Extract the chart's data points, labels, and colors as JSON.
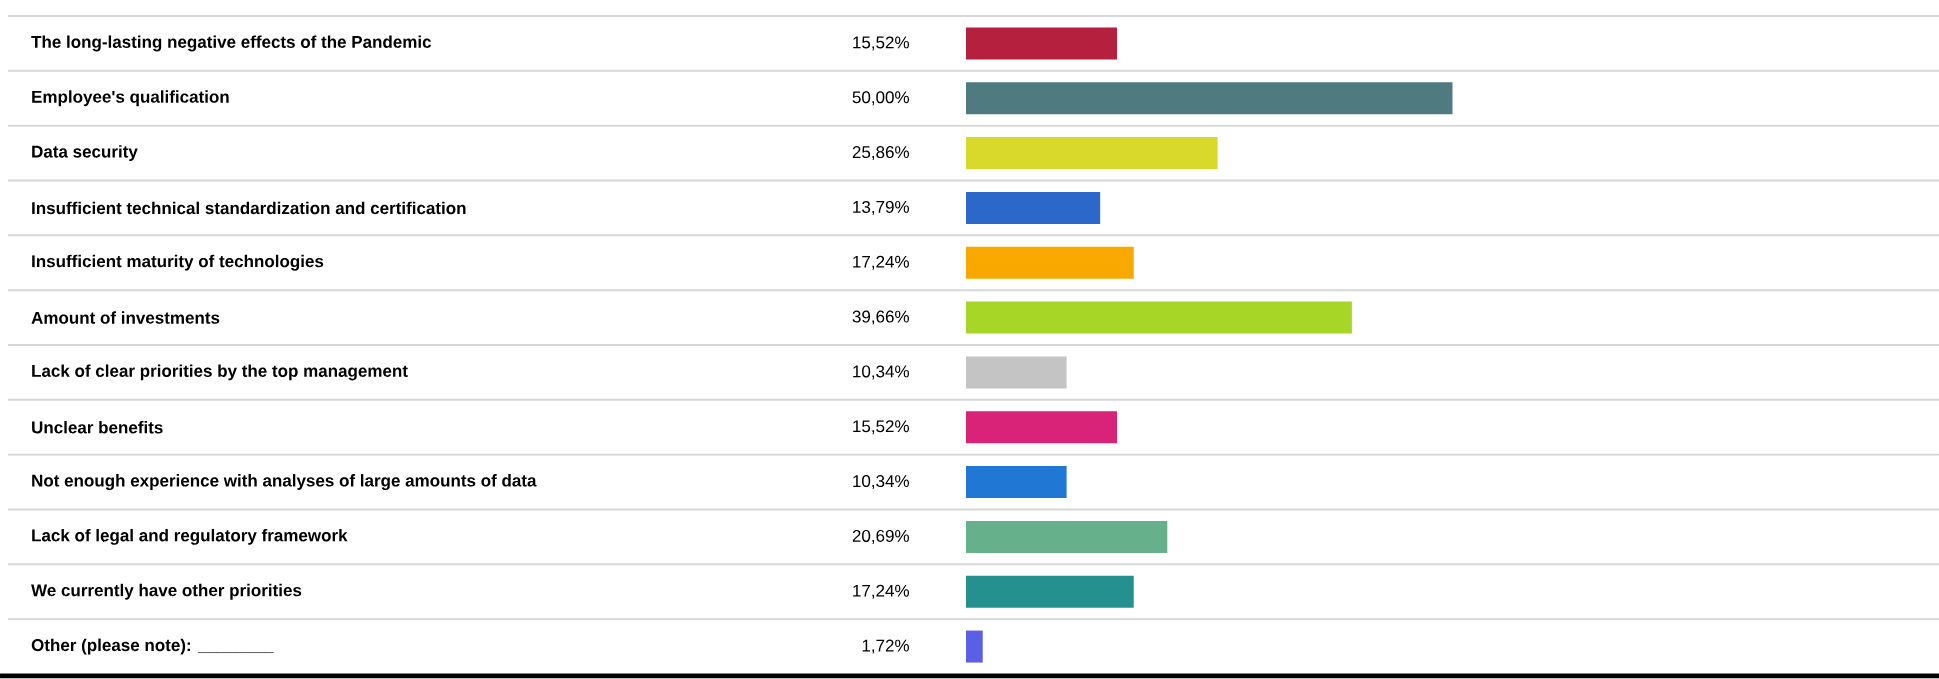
{
  "chart_data": {
    "type": "bar",
    "orientation": "horizontal",
    "categories": [
      "The long-lasting negative effects of the Pandemic",
      "Employee's qualification",
      "Data security",
      "Insufficient technical standardization and certification",
      "Insufficient maturity of technologies",
      "Amount of investments",
      "Lack of clear priorities by the top management",
      "Unclear benefits",
      "Not enough experience with analyses of large amounts of data",
      "Lack of legal and regulatory framework",
      "We currently have other priorities",
      "Other (please note): ________"
    ],
    "values": [
      15.52,
      50.0,
      25.86,
      13.79,
      17.24,
      39.66,
      10.34,
      15.52,
      10.34,
      20.69,
      17.24,
      1.72
    ],
    "value_labels": [
      "15,52%",
      "50,00%",
      "25,86%",
      "13,79%",
      "17,24%",
      "39,66%",
      "10,34%",
      "15,52%",
      "10,34%",
      "20,69%",
      "17,24%",
      "1,72%"
    ],
    "colors": [
      "#b5203f",
      "#4e7a80",
      "#d8d92a",
      "#2b68c9",
      "#f9a800",
      "#a8d627",
      "#c4c4c4",
      "#d92378",
      "#2177d4",
      "#66b08c",
      "#24918f",
      "#5b5fe6"
    ],
    "xlim": [
      0,
      100
    ]
  }
}
